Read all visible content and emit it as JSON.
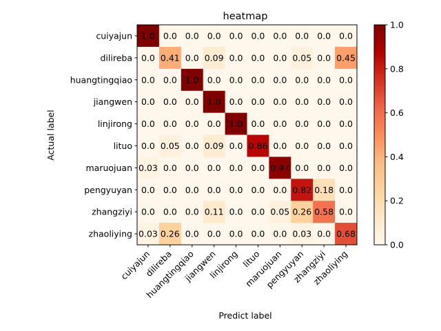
{
  "chart_data": {
    "type": "heatmap",
    "title": "heatmap",
    "xlabel": "Predict label",
    "ylabel": "Actual label",
    "x_categories": [
      "cuiyajun",
      "dilireba",
      "huangtingqiao",
      "jiangwen",
      "linjirong",
      "lituo",
      "maruojuan",
      "pengyuyan",
      "zhangziyi",
      "zhaoliying"
    ],
    "y_categories": [
      "cuiyajun",
      "dilireba",
      "huangtingqiao",
      "jiangwen",
      "linjirong",
      "lituo",
      "maruojuan",
      "pengyuyan",
      "zhangziyi",
      "zhaoliying"
    ],
    "values": [
      [
        1.0,
        0.0,
        0.0,
        0.0,
        0.0,
        0.0,
        0.0,
        0.0,
        0.0,
        0.0
      ],
      [
        0.0,
        0.41,
        0.0,
        0.09,
        0.0,
        0.0,
        0.0,
        0.05,
        0.0,
        0.45
      ],
      [
        0.0,
        0.0,
        1.0,
        0.0,
        0.0,
        0.0,
        0.0,
        0.0,
        0.0,
        0.0
      ],
      [
        0.0,
        0.0,
        0.0,
        1.0,
        0.0,
        0.0,
        0.0,
        0.0,
        0.0,
        0.0
      ],
      [
        0.0,
        0.0,
        0.0,
        0.0,
        1.0,
        0.0,
        0.0,
        0.0,
        0.0,
        0.0
      ],
      [
        0.0,
        0.05,
        0.0,
        0.09,
        0.0,
        0.86,
        0.0,
        0.0,
        0.0,
        0.0
      ],
      [
        0.03,
        0.0,
        0.0,
        0.0,
        0.0,
        0.0,
        0.97,
        0.0,
        0.0,
        0.0
      ],
      [
        0.0,
        0.0,
        0.0,
        0.0,
        0.0,
        0.0,
        0.0,
        0.82,
        0.18,
        0.0
      ],
      [
        0.0,
        0.0,
        0.0,
        0.11,
        0.0,
        0.0,
        0.05,
        0.26,
        0.58,
        0.0
      ],
      [
        0.03,
        0.26,
        0.0,
        0.0,
        0.0,
        0.0,
        0.0,
        0.03,
        0.0,
        0.68
      ]
    ],
    "cell_labels": [
      [
        "1.0",
        "0.0",
        "0.0",
        "0.0",
        "0.0",
        "0.0",
        "0.0",
        "0.0",
        "0.0",
        "0.0"
      ],
      [
        "0.0",
        "0.41",
        "0.0",
        "0.09",
        "0.0",
        "0.0",
        "0.0",
        "0.05",
        "0.0",
        "0.45"
      ],
      [
        "0.0",
        "0.0",
        "1.0",
        "0.0",
        "0.0",
        "0.0",
        "0.0",
        "0.0",
        "0.0",
        "0.0"
      ],
      [
        "0.0",
        "0.0",
        "0.0",
        "1.0",
        "0.0",
        "0.0",
        "0.0",
        "0.0",
        "0.0",
        "0.0"
      ],
      [
        "0.0",
        "0.0",
        "0.0",
        "0.0",
        "1.0",
        "0.0",
        "0.0",
        "0.0",
        "0.0",
        "0.0"
      ],
      [
        "0.0",
        "0.05",
        "0.0",
        "0.09",
        "0.0",
        "0.86",
        "0.0",
        "0.0",
        "0.0",
        "0.0"
      ],
      [
        "0.03",
        "0.0",
        "0.0",
        "0.0",
        "0.0",
        "0.0",
        "0.97",
        "0.0",
        "0.0",
        "0.0"
      ],
      [
        "0.0",
        "0.0",
        "0.0",
        "0.0",
        "0.0",
        "0.0",
        "0.0",
        "0.82",
        "0.18",
        "0.0"
      ],
      [
        "0.0",
        "0.0",
        "0.0",
        "0.11",
        "0.0",
        "0.0",
        "0.05",
        "0.26",
        "0.58",
        "0.0"
      ],
      [
        "0.03",
        "0.26",
        "0.0",
        "0.0",
        "0.0",
        "0.0",
        "0.0",
        "0.03",
        "0.0",
        "0.68"
      ]
    ],
    "colormap": "OrRd",
    "color_stops": [
      "#fff7ec",
      "#fee8c8",
      "#fdd49e",
      "#fdbb84",
      "#fc8d59",
      "#ef6548",
      "#d7301f",
      "#b30000",
      "#7f0000"
    ],
    "colorbar": {
      "range": [
        0.0,
        1.0
      ],
      "ticks": [
        "0.0",
        "0.2",
        "0.4",
        "0.6",
        "0.8",
        "1.0"
      ]
    },
    "grid": false
  }
}
